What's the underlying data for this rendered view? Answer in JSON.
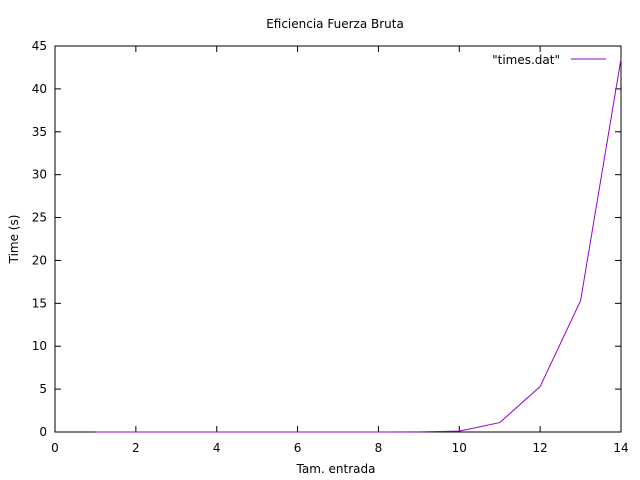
{
  "chart_data": {
    "type": "line",
    "title": "Eficiencia Fuerza Bruta",
    "xlabel": "Tam. entrada",
    "ylabel": "Time (s)",
    "xlim": [
      0,
      14
    ],
    "ylim": [
      0,
      45
    ],
    "x_ticks": [
      0,
      2,
      4,
      6,
      8,
      10,
      12,
      14
    ],
    "y_ticks": [
      0,
      5,
      10,
      15,
      20,
      25,
      30,
      35,
      40,
      45
    ],
    "grid": false,
    "legend_position": "top-right",
    "series": [
      {
        "name": "\"times.dat\"",
        "color": "#9400d3",
        "x": [
          1,
          2,
          3,
          4,
          5,
          6,
          7,
          8,
          9,
          10,
          11,
          12,
          13,
          14
        ],
        "y": [
          0.0,
          0.0,
          0.0,
          0.0,
          0.0,
          0.0,
          0.0,
          0.0,
          0.01,
          0.1,
          1.1,
          5.3,
          15.3,
          43.5
        ]
      }
    ]
  }
}
